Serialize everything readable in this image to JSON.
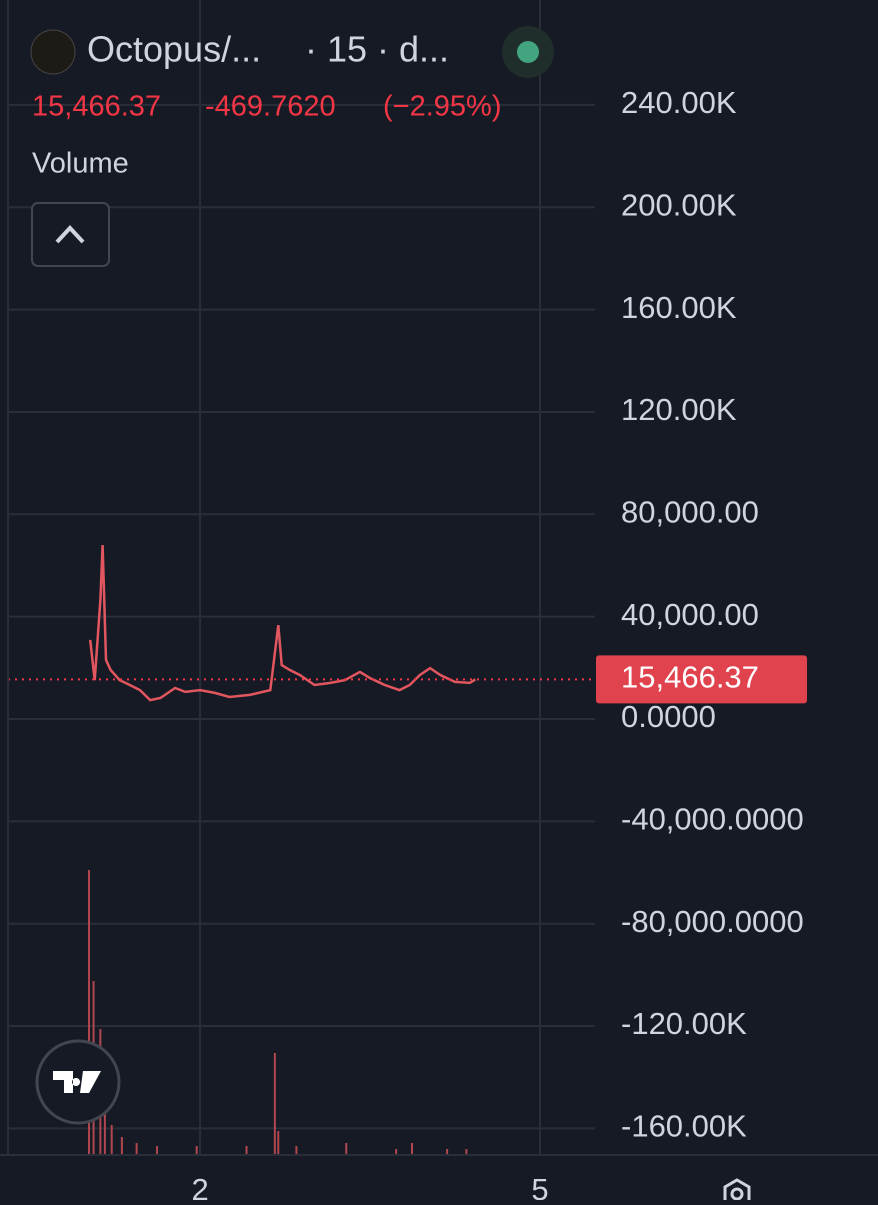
{
  "header": {
    "symbol": "Octopus/...",
    "interval": "· 15 · d...",
    "price": "15,466.37",
    "change": "-469.7620",
    "change_pct": "(−2.95%)",
    "indicator": "Volume"
  },
  "chart_data": {
    "type": "line",
    "series": [
      {
        "name": "Octopus",
        "color": "#e2575f",
        "x": [
          1.03,
          1.07,
          1.12,
          1.14,
          1.17,
          1.21,
          1.29,
          1.38,
          1.47,
          1.56,
          1.65,
          1.78,
          1.87,
          2.0,
          2.13,
          2.26,
          2.44,
          2.62,
          2.69,
          2.72,
          2.79,
          2.88,
          3.01,
          3.15,
          3.28,
          3.41,
          3.5,
          3.63,
          3.76,
          3.85,
          3.94,
          4.03,
          4.12,
          4.25,
          4.38,
          4.43
        ],
        "values": [
          30900,
          15200,
          46500,
          68000,
          23100,
          19200,
          15200,
          13300,
          11300,
          7400,
          8200,
          12100,
          10600,
          11300,
          10200,
          8600,
          9400,
          11300,
          36700,
          21100,
          19200,
          17200,
          13300,
          14100,
          15200,
          18400,
          16000,
          13300,
          11300,
          13300,
          17200,
          19900,
          17200,
          14500,
          14100,
          15466.37
        ]
      }
    ],
    "volume": {
      "color": "#b0474f",
      "ylim": [
        0,
        100
      ],
      "x": [
        1.02,
        1.06,
        1.12,
        1.16,
        1.22,
        1.31,
        1.44,
        1.62,
        1.97,
        2.41,
        2.66,
        2.69,
        2.85,
        3.29,
        3.73,
        3.87,
        4.18,
        4.35
      ],
      "values": [
        95,
        58,
        42,
        20,
        10,
        6,
        4,
        3,
        3,
        3,
        34,
        8,
        3,
        4,
        2,
        4,
        2,
        2
      ]
    },
    "xlim": [
      0.305,
      5.485
    ],
    "xticks": [
      2,
      5
    ],
    "ylim": [
      -170400,
      281000
    ],
    "yticks": [
      {
        "value": 240000,
        "label": "240.00K"
      },
      {
        "value": 200000,
        "label": "200.00K"
      },
      {
        "value": 160000,
        "label": "160.00K"
      },
      {
        "value": 120000,
        "label": "120.00K"
      },
      {
        "value": 80000,
        "label": "80,000.00"
      },
      {
        "value": 40000,
        "label": "40,000.00"
      },
      {
        "value": 0,
        "label": "0.0000"
      },
      {
        "value": -40000,
        "label": "-40,000.0000"
      },
      {
        "value": -80000,
        "label": "-80,000.0000"
      },
      {
        "value": -120000,
        "label": "-120.00K"
      },
      {
        "value": -160000,
        "label": "-160.00K"
      }
    ],
    "grid": true
  }
}
